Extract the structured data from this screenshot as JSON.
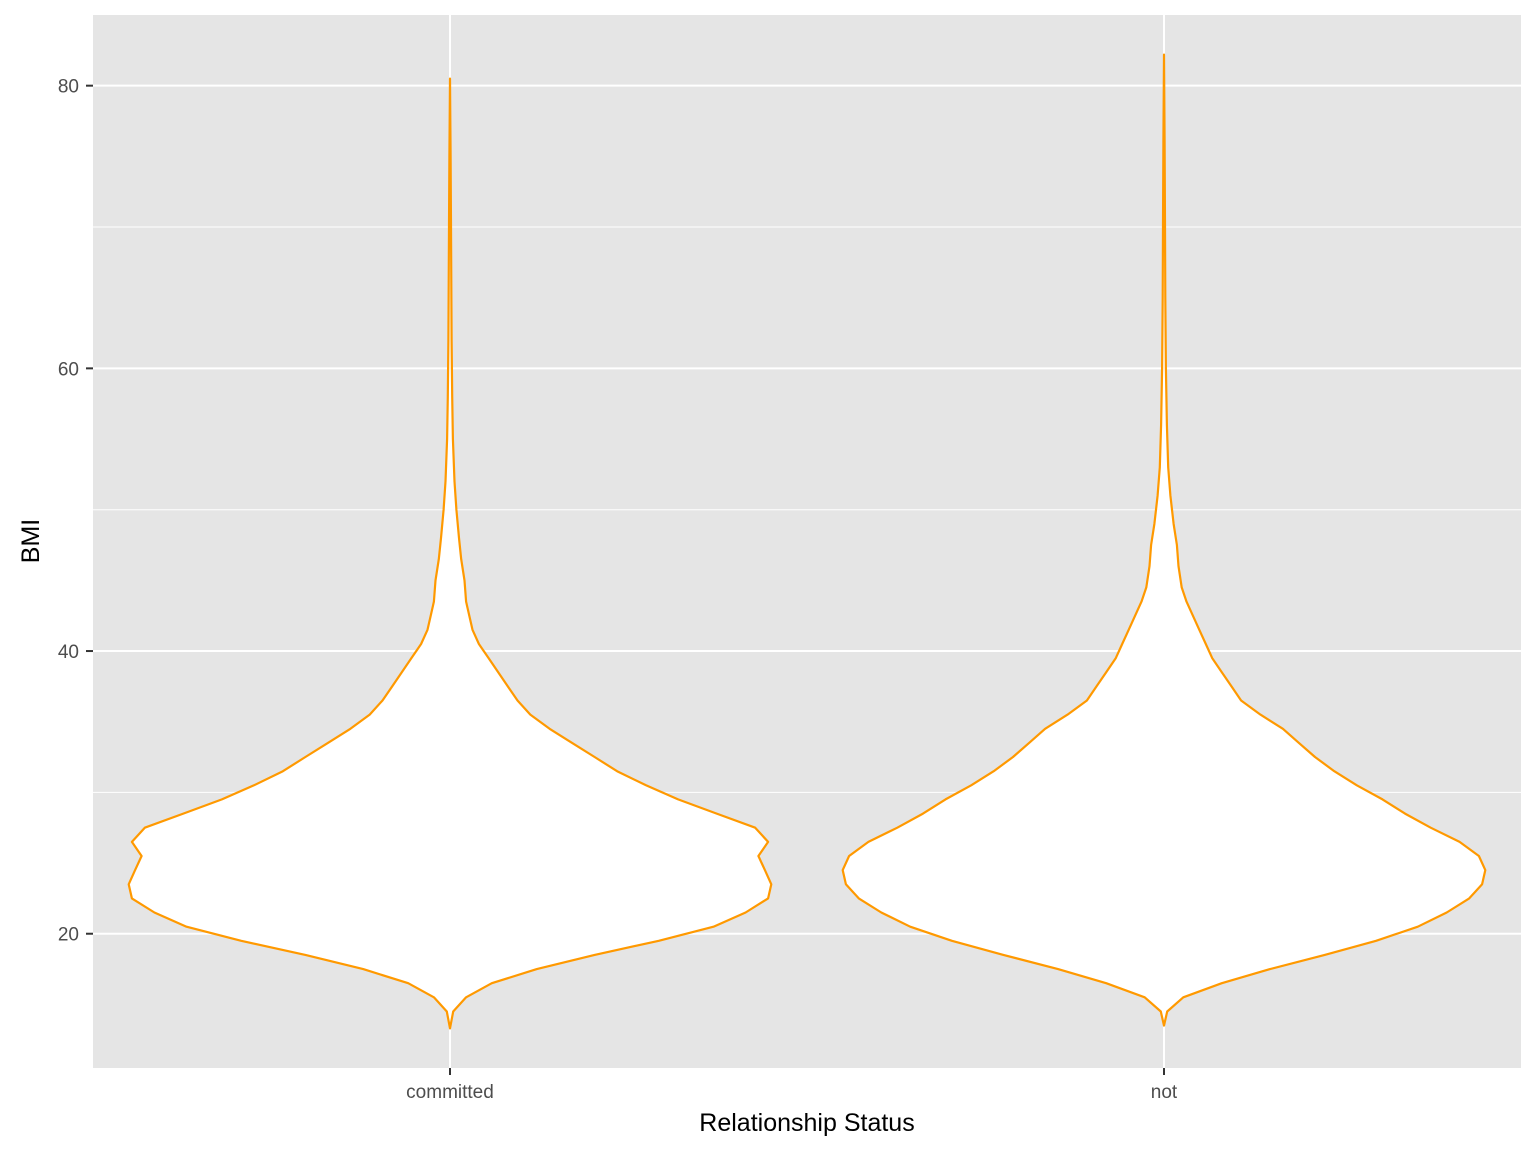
{
  "chart_data": {
    "type": "violin",
    "xlabel": "Relationship Status",
    "ylabel": "BMI",
    "ylim": [
      10.5,
      85
    ],
    "y_ticks": [
      20,
      40,
      60,
      80
    ],
    "y_minor_ticks": [
      30,
      50,
      70
    ],
    "grid": true,
    "categories": [
      "committed",
      "not"
    ],
    "colors": {
      "panel_background": "#e5e5e5",
      "grid": "#ffffff",
      "violin_fill": "#ffffff",
      "violin_outline": "#ff9900"
    },
    "series": [
      {
        "category": "committed",
        "density_profile": [
          [
            13.3,
            0.0
          ],
          [
            14.5,
            0.01
          ],
          [
            15.5,
            0.05
          ],
          [
            16.5,
            0.13
          ],
          [
            17.5,
            0.27
          ],
          [
            18.5,
            0.45
          ],
          [
            19.5,
            0.65
          ],
          [
            20.5,
            0.82
          ],
          [
            21.5,
            0.92
          ],
          [
            22.5,
            0.99
          ],
          [
            23.5,
            1.0
          ],
          [
            24.5,
            0.98
          ],
          [
            25.5,
            0.96
          ],
          [
            26.5,
            0.99
          ],
          [
            27.5,
            0.95
          ],
          [
            28.5,
            0.83
          ],
          [
            29.5,
            0.71
          ],
          [
            30.5,
            0.61
          ],
          [
            31.5,
            0.52
          ],
          [
            32.5,
            0.45
          ],
          [
            33.5,
            0.38
          ],
          [
            34.5,
            0.31
          ],
          [
            35.5,
            0.25
          ],
          [
            36.5,
            0.21
          ],
          [
            37.5,
            0.18
          ],
          [
            38.5,
            0.15
          ],
          [
            39.5,
            0.12
          ],
          [
            40.5,
            0.09
          ],
          [
            41.5,
            0.07
          ],
          [
            42.5,
            0.06
          ],
          [
            43.5,
            0.05
          ],
          [
            45.0,
            0.045
          ],
          [
            46.5,
            0.035
          ],
          [
            48.0,
            0.028
          ],
          [
            50.0,
            0.02
          ],
          [
            52.0,
            0.014
          ],
          [
            55.0,
            0.009
          ],
          [
            58.0,
            0.007
          ],
          [
            62.0,
            0.005
          ],
          [
            66.0,
            0.004
          ],
          [
            70.0,
            0.003
          ],
          [
            75.0,
            0.002
          ],
          [
            80.5,
            0.0
          ]
        ]
      },
      {
        "category": "not",
        "density_profile": [
          [
            13.5,
            0.0
          ],
          [
            14.5,
            0.01
          ],
          [
            15.5,
            0.06
          ],
          [
            16.5,
            0.18
          ],
          [
            17.5,
            0.33
          ],
          [
            18.5,
            0.5
          ],
          [
            19.5,
            0.66
          ],
          [
            20.5,
            0.79
          ],
          [
            21.5,
            0.88
          ],
          [
            22.5,
            0.95
          ],
          [
            23.5,
            0.99
          ],
          [
            24.5,
            1.0
          ],
          [
            25.5,
            0.98
          ],
          [
            26.5,
            0.92
          ],
          [
            27.5,
            0.83
          ],
          [
            28.5,
            0.75
          ],
          [
            29.5,
            0.68
          ],
          [
            30.5,
            0.6
          ],
          [
            31.5,
            0.53
          ],
          [
            32.5,
            0.47
          ],
          [
            33.5,
            0.42
          ],
          [
            34.5,
            0.37
          ],
          [
            35.5,
            0.3
          ],
          [
            36.5,
            0.24
          ],
          [
            37.5,
            0.21
          ],
          [
            38.5,
            0.18
          ],
          [
            39.5,
            0.15
          ],
          [
            40.5,
            0.13
          ],
          [
            41.5,
            0.11
          ],
          [
            42.5,
            0.09
          ],
          [
            43.5,
            0.07
          ],
          [
            44.5,
            0.055
          ],
          [
            46.0,
            0.045
          ],
          [
            47.5,
            0.04
          ],
          [
            49.0,
            0.03
          ],
          [
            51.0,
            0.02
          ],
          [
            53.0,
            0.013
          ],
          [
            56.0,
            0.009
          ],
          [
            60.0,
            0.006
          ],
          [
            65.0,
            0.004
          ],
          [
            70.0,
            0.003
          ],
          [
            76.0,
            0.002
          ],
          [
            82.2,
            0.0
          ]
        ]
      }
    ]
  }
}
